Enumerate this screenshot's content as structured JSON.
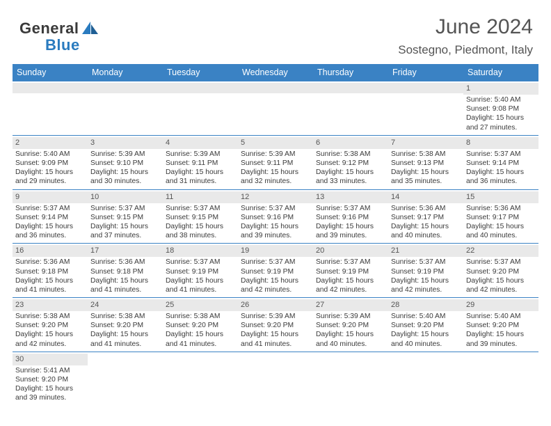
{
  "brand": {
    "part1": "General",
    "part2": "Blue"
  },
  "title": "June 2024",
  "location": "Sostegno, Piedmont, Italy",
  "colors": {
    "header_bg": "#3a82c4",
    "numbar_bg": "#e9e9e9",
    "rule": "#3a82c4",
    "text": "#3a3a3a",
    "title_text": "#545454",
    "brand_blue": "#2a7bbf"
  },
  "dow": [
    "Sunday",
    "Monday",
    "Tuesday",
    "Wednesday",
    "Thursday",
    "Friday",
    "Saturday"
  ],
  "weeks": [
    [
      null,
      null,
      null,
      null,
      null,
      null,
      {
        "n": "1",
        "sr": "5:40 AM",
        "ss": "9:08 PM",
        "dl": "15 hours and 27 minutes."
      }
    ],
    [
      {
        "n": "2",
        "sr": "5:40 AM",
        "ss": "9:09 PM",
        "dl": "15 hours and 29 minutes."
      },
      {
        "n": "3",
        "sr": "5:39 AM",
        "ss": "9:10 PM",
        "dl": "15 hours and 30 minutes."
      },
      {
        "n": "4",
        "sr": "5:39 AM",
        "ss": "9:11 PM",
        "dl": "15 hours and 31 minutes."
      },
      {
        "n": "5",
        "sr": "5:39 AM",
        "ss": "9:11 PM",
        "dl": "15 hours and 32 minutes."
      },
      {
        "n": "6",
        "sr": "5:38 AM",
        "ss": "9:12 PM",
        "dl": "15 hours and 33 minutes."
      },
      {
        "n": "7",
        "sr": "5:38 AM",
        "ss": "9:13 PM",
        "dl": "15 hours and 35 minutes."
      },
      {
        "n": "8",
        "sr": "5:37 AM",
        "ss": "9:14 PM",
        "dl": "15 hours and 36 minutes."
      }
    ],
    [
      {
        "n": "9",
        "sr": "5:37 AM",
        "ss": "9:14 PM",
        "dl": "15 hours and 36 minutes."
      },
      {
        "n": "10",
        "sr": "5:37 AM",
        "ss": "9:15 PM",
        "dl": "15 hours and 37 minutes."
      },
      {
        "n": "11",
        "sr": "5:37 AM",
        "ss": "9:15 PM",
        "dl": "15 hours and 38 minutes."
      },
      {
        "n": "12",
        "sr": "5:37 AM",
        "ss": "9:16 PM",
        "dl": "15 hours and 39 minutes."
      },
      {
        "n": "13",
        "sr": "5:37 AM",
        "ss": "9:16 PM",
        "dl": "15 hours and 39 minutes."
      },
      {
        "n": "14",
        "sr": "5:36 AM",
        "ss": "9:17 PM",
        "dl": "15 hours and 40 minutes."
      },
      {
        "n": "15",
        "sr": "5:36 AM",
        "ss": "9:17 PM",
        "dl": "15 hours and 40 minutes."
      }
    ],
    [
      {
        "n": "16",
        "sr": "5:36 AM",
        "ss": "9:18 PM",
        "dl": "15 hours and 41 minutes."
      },
      {
        "n": "17",
        "sr": "5:36 AM",
        "ss": "9:18 PM",
        "dl": "15 hours and 41 minutes."
      },
      {
        "n": "18",
        "sr": "5:37 AM",
        "ss": "9:19 PM",
        "dl": "15 hours and 41 minutes."
      },
      {
        "n": "19",
        "sr": "5:37 AM",
        "ss": "9:19 PM",
        "dl": "15 hours and 42 minutes."
      },
      {
        "n": "20",
        "sr": "5:37 AM",
        "ss": "9:19 PM",
        "dl": "15 hours and 42 minutes."
      },
      {
        "n": "21",
        "sr": "5:37 AM",
        "ss": "9:19 PM",
        "dl": "15 hours and 42 minutes."
      },
      {
        "n": "22",
        "sr": "5:37 AM",
        "ss": "9:20 PM",
        "dl": "15 hours and 42 minutes."
      }
    ],
    [
      {
        "n": "23",
        "sr": "5:38 AM",
        "ss": "9:20 PM",
        "dl": "15 hours and 42 minutes."
      },
      {
        "n": "24",
        "sr": "5:38 AM",
        "ss": "9:20 PM",
        "dl": "15 hours and 41 minutes."
      },
      {
        "n": "25",
        "sr": "5:38 AM",
        "ss": "9:20 PM",
        "dl": "15 hours and 41 minutes."
      },
      {
        "n": "26",
        "sr": "5:39 AM",
        "ss": "9:20 PM",
        "dl": "15 hours and 41 minutes."
      },
      {
        "n": "27",
        "sr": "5:39 AM",
        "ss": "9:20 PM",
        "dl": "15 hours and 40 minutes."
      },
      {
        "n": "28",
        "sr": "5:40 AM",
        "ss": "9:20 PM",
        "dl": "15 hours and 40 minutes."
      },
      {
        "n": "29",
        "sr": "5:40 AM",
        "ss": "9:20 PM",
        "dl": "15 hours and 39 minutes."
      }
    ],
    [
      {
        "n": "30",
        "sr": "5:41 AM",
        "ss": "9:20 PM",
        "dl": "15 hours and 39 minutes."
      },
      null,
      null,
      null,
      null,
      null,
      null
    ]
  ],
  "labels": {
    "sunrise": "Sunrise:",
    "sunset": "Sunset:",
    "daylight": "Daylight:"
  }
}
